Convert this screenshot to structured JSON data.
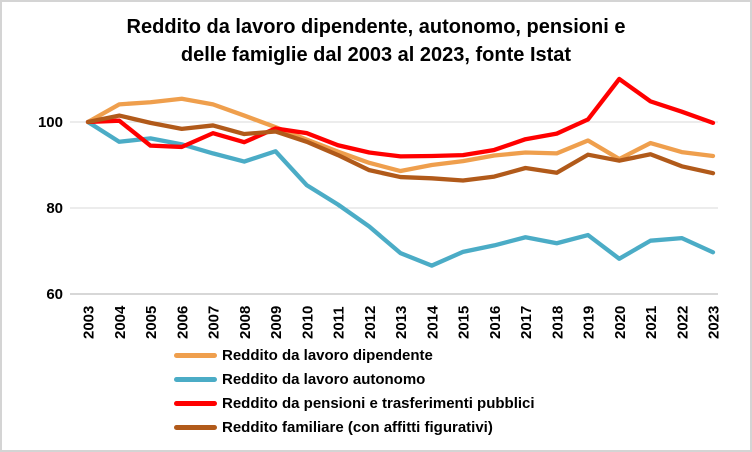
{
  "chart_data": {
    "type": "line",
    "title": "Reddito da lavoro dipendente, autonomo, pensioni e delle famiglie dal 2003 al 2023, fonte Istat",
    "title_lines": [
      "Reddito da lavoro dipendente, autonomo, pensioni e",
      "delle famiglie dal 2003 al 2023, fonte Istat"
    ],
    "x": [
      "2003",
      "2004",
      "2005",
      "2006",
      "2007",
      "2008",
      "2009",
      "2010",
      "2011",
      "2012",
      "2013",
      "2014",
      "2015",
      "2016",
      "2017",
      "2018",
      "2019",
      "2020",
      "2021",
      "2022",
      "2023"
    ],
    "xlabel": "",
    "ylabel": "",
    "yticks": [
      60,
      80,
      100
    ],
    "ylim": [
      60,
      112
    ],
    "grid": "horizontal",
    "legend_position": "bottom-left",
    "gridline_color": "#d9d9d9",
    "axis_color": "#bfbfbf",
    "series": [
      {
        "name": "Reddito da lavoro dipendente",
        "color": "#ef9f4d",
        "values": [
          100,
          104.1,
          104.6,
          105.4,
          104.1,
          101.5,
          98.8,
          95.9,
          93.1,
          90.5,
          88.6,
          90.0,
          90.9,
          92.2,
          92.9,
          92.7,
          95.7,
          91.4,
          95.1,
          93.0,
          92.1
        ]
      },
      {
        "name": "Reddito da lavoro autonomo",
        "color": "#4bacc6",
        "values": [
          100,
          95.4,
          96.2,
          94.8,
          92.7,
          90.8,
          93.2,
          85.3,
          80.8,
          75.7,
          69.5,
          66.6,
          69.8,
          71.3,
          73.2,
          71.8,
          73.7,
          68.2,
          72.4,
          73.0,
          69.7
        ]
      },
      {
        "name": "Reddito da pensioni e trasferimenti pubblici",
        "color": "#ff0000",
        "values": [
          100,
          100.3,
          94.5,
          94.2,
          97.4,
          95.3,
          98.5,
          97.4,
          94.6,
          92.9,
          92.0,
          92.1,
          92.3,
          93.5,
          96.0,
          97.3,
          100.6,
          110.0,
          104.8,
          102.4,
          99.8
        ]
      },
      {
        "name": "Reddito familiare (con affitti figurativi)",
        "color": "#b15a1a",
        "values": [
          100,
          101.5,
          99.8,
          98.4,
          99.2,
          97.2,
          97.8,
          95.4,
          92.3,
          88.8,
          87.2,
          86.9,
          86.4,
          87.3,
          89.3,
          88.2,
          92.4,
          91.0,
          92.5,
          89.7,
          88.1
        ]
      }
    ]
  }
}
